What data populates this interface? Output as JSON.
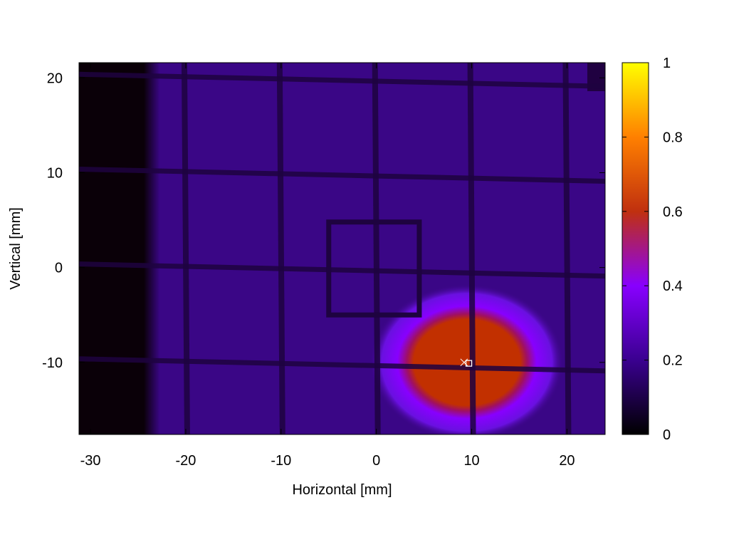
{
  "chart_data": {
    "type": "heatmap",
    "title": "",
    "xlabel": "Horizontal [mm]",
    "ylabel": "Vertical [mm]",
    "xlim": [
      -31.2,
      24
    ],
    "ylim": [
      -17.6,
      21.6
    ],
    "x_ticks": [
      {
        "value": -30,
        "label": "-30"
      },
      {
        "value": -20,
        "label": "-20"
      },
      {
        "value": -10,
        "label": "-10"
      },
      {
        "value": 0,
        "label": "0"
      },
      {
        "value": 10,
        "label": "10"
      },
      {
        "value": 20,
        "label": "20"
      }
    ],
    "y_ticks": [
      {
        "value": -10,
        "label": "-10"
      },
      {
        "value": 0,
        "label": "0"
      },
      {
        "value": 10,
        "label": "10"
      },
      {
        "value": 20,
        "label": "20"
      }
    ],
    "colorbar": {
      "range": [
        0,
        1
      ],
      "ticks": [
        {
          "value": 0,
          "label": "0"
        },
        {
          "value": 0.2,
          "label": "0.2"
        },
        {
          "value": 0.4,
          "label": "0.4"
        },
        {
          "value": 0.6,
          "label": "0.6"
        },
        {
          "value": 0.8,
          "label": "0.8"
        },
        {
          "value": 1,
          "label": "1"
        }
      ],
      "colormap": [
        "#000000",
        "#3a0090",
        "#8800ff",
        "#c0300f",
        "#ff8000",
        "#ffff00"
      ]
    },
    "background_level": 0.1,
    "beam": {
      "center": [
        9.5,
        -10
      ],
      "radius_x": 7,
      "radius_y": 5.5,
      "peak": 0.5
    },
    "grid_lines": {
      "vertical_x": [
        -20,
        -10,
        0,
        10,
        20
      ],
      "horizontal_y": [
        20,
        10,
        0,
        -10
      ]
    },
    "center_square": {
      "x": [
        -5,
        4.5
      ],
      "y": [
        -5,
        4.8
      ]
    },
    "dark_left_region_x": [
      -31.2,
      -23.6
    ],
    "markers": [
      {
        "type": "cross",
        "x": 9.2,
        "y": -10
      },
      {
        "type": "square",
        "x": 9.7,
        "y": -10.1
      }
    ],
    "grid": false,
    "legend": "colorbar-right"
  }
}
